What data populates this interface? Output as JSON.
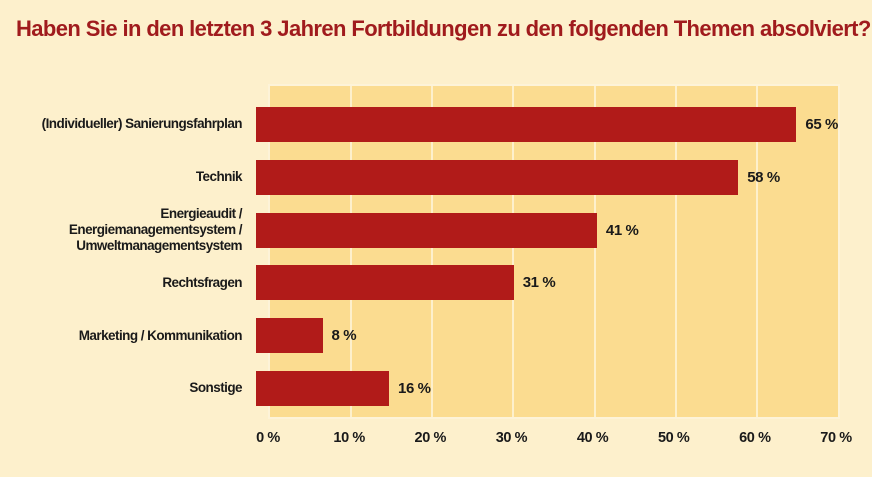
{
  "chart_data": {
    "type": "bar",
    "orientation": "horizontal",
    "title": "Haben Sie in den letzten 3 Jahren Fortbildungen zu den folgenden Themen absolviert?",
    "categories": [
      "(Individueller) Sanierungsfahrplan",
      "Technik",
      "Energieaudit / Energiemanagementsystem /\nUmweltmanagementsystem",
      "Rechtsfragen",
      "Marketing / Kommunikation",
      "Sonstige"
    ],
    "values": [
      65,
      58,
      41,
      31,
      8,
      16
    ],
    "value_labels": [
      "65 %",
      "58 %",
      "41 %",
      "31 %",
      "8 %",
      "16 %"
    ],
    "x_ticks": [
      "0 %",
      "10 %",
      "20 %",
      "30 %",
      "40 %",
      "50 %",
      "60 %",
      "70 %"
    ],
    "x_tick_values": [
      0,
      10,
      20,
      30,
      40,
      50,
      60,
      70
    ],
    "xlim": [
      0,
      70
    ],
    "xlabel": "",
    "ylabel": "",
    "grid": "vertical-only",
    "legend": "none",
    "colors": {
      "bar": "#b11b19",
      "title": "#a01b1d",
      "plot_background": "#fbdc90",
      "page_background": "#fdf0cc",
      "gridline": "#fdf0cc",
      "text": "#1a1a1a"
    }
  }
}
